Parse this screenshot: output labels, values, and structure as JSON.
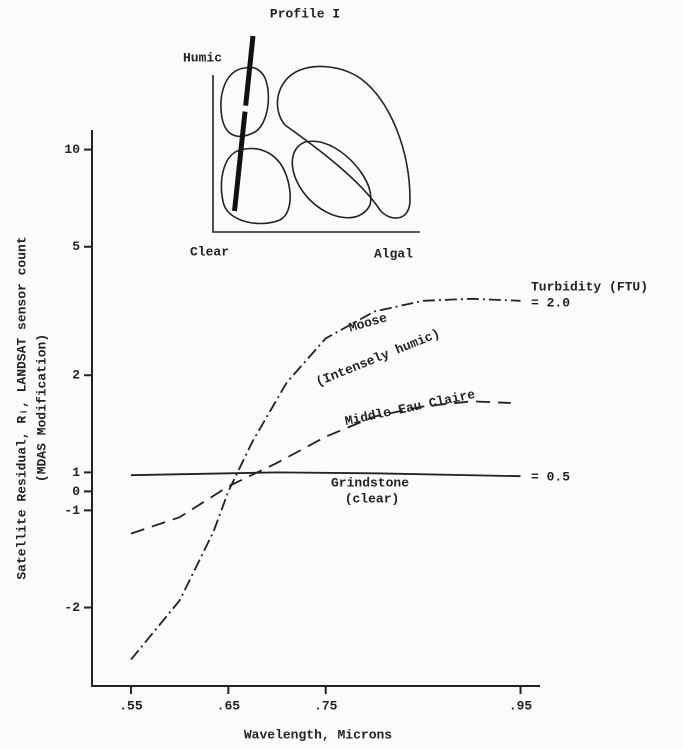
{
  "chart_data": {
    "type": "line",
    "inset": {
      "title": "Profile I",
      "labels": [
        "Humic",
        "Clear",
        "Algal"
      ]
    },
    "y_label": "Satellite Residual, Rᵢ, LANDSAT sensor count",
    "y_label_sub": "(MDAS Modification)",
    "x_label": "Wavelength, Microns",
    "yscale": "symlog",
    "xlim": [
      0.51,
      0.97
    ],
    "xticks": [
      {
        "value": 0.55,
        "label": ".55"
      },
      {
        "value": 0.65,
        "label": ".65"
      },
      {
        "value": 0.75,
        "label": ".75"
      },
      {
        "value": 0.95,
        "label": ".95"
      }
    ],
    "ylim": [
      -3.5,
      11.5
    ],
    "yticks": [
      10,
      5,
      2,
      1,
      0,
      -1,
      -2
    ],
    "series": [
      {
        "name": "Moose",
        "color": "#222222",
        "dash": "12 4 2 4",
        "x": [
          0.55,
          0.6,
          0.635,
          0.65,
          0.675,
          0.71,
          0.75,
          0.8,
          0.85,
          0.9,
          0.95
        ],
        "values": [
          -2.9,
          -1.9,
          -1.16,
          0,
          1.25,
          1.9,
          2.6,
          3.15,
          3.4,
          3.45,
          3.4
        ]
      },
      {
        "name": "Middle Eau Claire",
        "color": "#222222",
        "dash": "14 8",
        "x": [
          0.55,
          0.6,
          0.65,
          0.7,
          0.75,
          0.8,
          0.85,
          0.9,
          0.94
        ],
        "values": [
          -1.18,
          -1.05,
          0.26,
          1.07,
          1.29,
          1.49,
          1.6,
          1.66,
          1.64
        ]
      },
      {
        "name": "Grindstone",
        "color": "#222222",
        "dash": "none",
        "x": [
          0.55,
          0.65,
          0.7,
          0.8,
          0.95
        ],
        "values": [
          0.85,
          0.95,
          1.0,
          0.95,
          0.8
        ]
      }
    ],
    "annotations": [
      "(Intensely humic)",
      "(clear)",
      "Turbidity (FTU)",
      "= 2.0",
      "= 0.5"
    ]
  }
}
